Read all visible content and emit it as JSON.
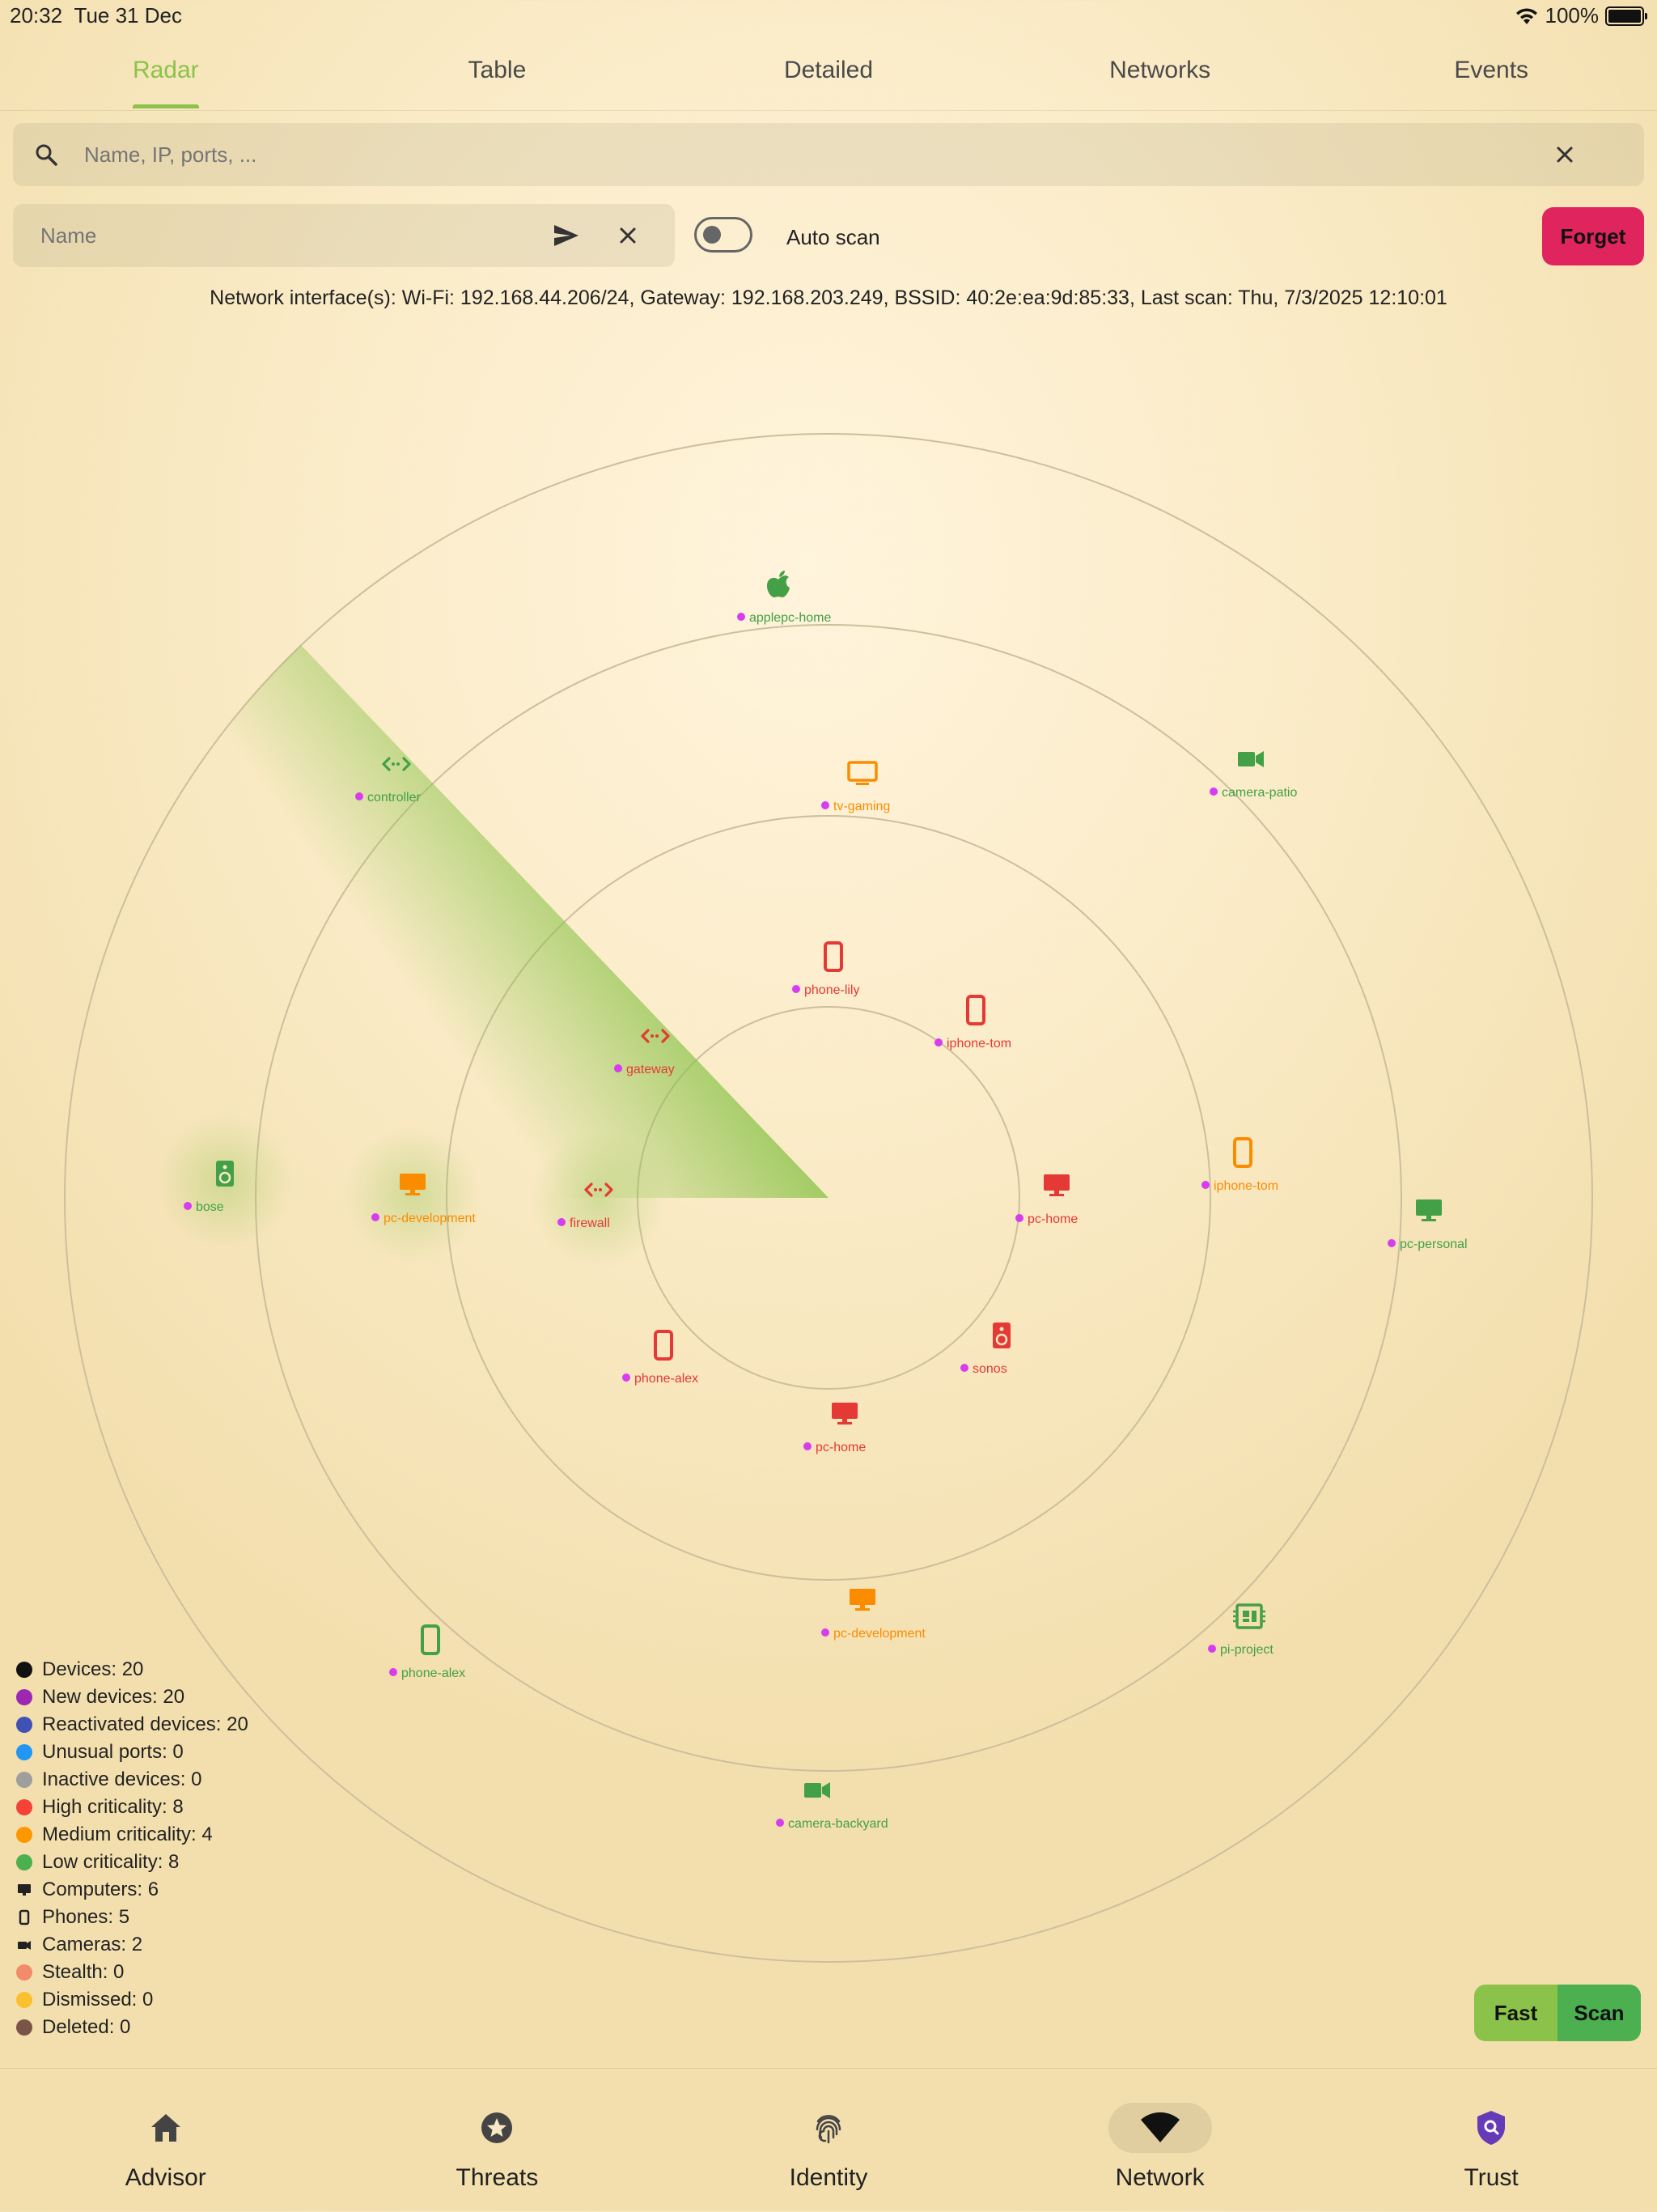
{
  "status_bar": {
    "time": "20:32",
    "date": "Tue 31 Dec",
    "battery": "100%"
  },
  "tabs": [
    {
      "label": "Radar",
      "active": true
    },
    {
      "label": "Table",
      "active": false
    },
    {
      "label": "Detailed",
      "active": false
    },
    {
      "label": "Networks",
      "active": false
    },
    {
      "label": "Events",
      "active": false
    }
  ],
  "search": {
    "placeholder": "Name, IP, ports, ..."
  },
  "name_field": {
    "placeholder": "Name"
  },
  "auto_scan": {
    "label": "Auto scan",
    "enabled": false
  },
  "forget_button": "Forget",
  "network_info": "Network interface(s): Wi-Fi: 192.168.44.206/24, Gateway: 192.168.203.249, BSSID: 40:2e:ea:9d:85:33, Last scan: Thu, 7/3/2025 12:10:01",
  "colors": {
    "high": "#e53935",
    "medium": "#fb8c00",
    "low": "#43a047",
    "accent": "#8bc34a",
    "new_dot": "#d63cf0"
  },
  "devices": [
    {
      "name": "applepc-home",
      "type": "apple",
      "criticality": "low"
    },
    {
      "name": "controller",
      "type": "router",
      "criticality": "low"
    },
    {
      "name": "tv-gaming",
      "type": "tv",
      "criticality": "medium"
    },
    {
      "name": "camera-patio",
      "type": "camera",
      "criticality": "low"
    },
    {
      "name": "phone-lily",
      "type": "phone",
      "criticality": "high"
    },
    {
      "name": "iphone-tom",
      "type": "phone",
      "criticality": "high"
    },
    {
      "name": "gateway",
      "type": "router",
      "criticality": "high"
    },
    {
      "name": "bose",
      "type": "speaker",
      "criticality": "low"
    },
    {
      "name": "pc-development",
      "type": "computer",
      "criticality": "medium"
    },
    {
      "name": "firewall",
      "type": "router",
      "criticality": "high"
    },
    {
      "name": "pc-home",
      "type": "computer",
      "criticality": "high"
    },
    {
      "name": "iphone-tom",
      "type": "phone",
      "criticality": "medium"
    },
    {
      "name": "pc-personal",
      "type": "computer",
      "criticality": "low"
    },
    {
      "name": "phone-alex",
      "type": "phone",
      "criticality": "high"
    },
    {
      "name": "sonos",
      "type": "speaker",
      "criticality": "high"
    },
    {
      "name": "pc-home",
      "type": "computer",
      "criticality": "high"
    },
    {
      "name": "pc-development",
      "type": "computer",
      "criticality": "medium"
    },
    {
      "name": "pi-project",
      "type": "board",
      "criticality": "low"
    },
    {
      "name": "phone-alex",
      "type": "phone",
      "criticality": "low"
    },
    {
      "name": "camera-backyard",
      "type": "camera",
      "criticality": "low"
    }
  ],
  "legend": [
    {
      "label": "Devices: 20",
      "kind": "dot",
      "color": "#111111"
    },
    {
      "label": "New devices: 20",
      "kind": "dot",
      "color": "#9c27b0"
    },
    {
      "label": "Reactivated devices: 20",
      "kind": "dot",
      "color": "#3f51b5"
    },
    {
      "label": "Unusual ports: 0",
      "kind": "dot",
      "color": "#2196f3"
    },
    {
      "label": "Inactive devices: 0",
      "kind": "dot",
      "color": "#9e9e9e"
    },
    {
      "label": "High criticality: 8",
      "kind": "dot",
      "color": "#f44336"
    },
    {
      "label": "Medium criticality: 4",
      "kind": "dot",
      "color": "#ff9800"
    },
    {
      "label": "Low criticality: 8",
      "kind": "dot",
      "color": "#4caf50"
    },
    {
      "label": "Computers: 6",
      "kind": "computer",
      "color": "#222222"
    },
    {
      "label": "Phones: 5",
      "kind": "phone",
      "color": "#222222"
    },
    {
      "label": "Cameras: 2",
      "kind": "camera",
      "color": "#222222"
    },
    {
      "label": "Stealth: 0",
      "kind": "dot",
      "color": "#f28b6b"
    },
    {
      "label": "Dismissed: 0",
      "kind": "dot",
      "color": "#fbc02d"
    },
    {
      "label": "Deleted: 0",
      "kind": "dot",
      "color": "#795548"
    }
  ],
  "scan_buttons": {
    "fast": "Fast",
    "scan": "Scan"
  },
  "bottom_nav": [
    {
      "label": "Advisor",
      "icon": "home-icon",
      "active": false
    },
    {
      "label": "Threats",
      "icon": "threat-icon",
      "active": false
    },
    {
      "label": "Identity",
      "icon": "fingerprint-icon",
      "active": false
    },
    {
      "label": "Network",
      "icon": "wifi-icon",
      "active": true
    },
    {
      "label": "Trust",
      "icon": "shield-search-icon",
      "active": false
    }
  ]
}
